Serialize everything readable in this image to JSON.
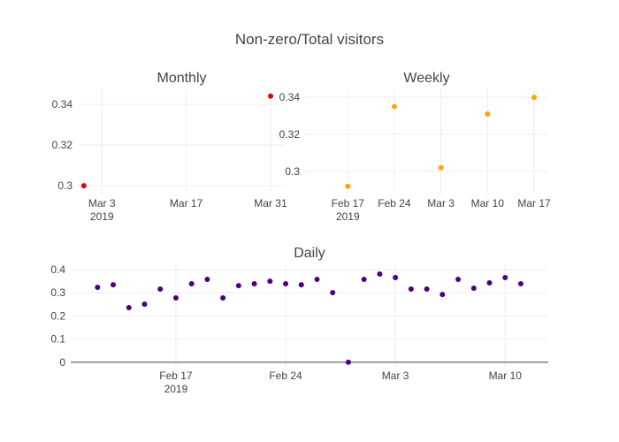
{
  "title": "Non-zero/Total visitors",
  "chart_data": [
    {
      "type": "scatter",
      "title": "Monthly",
      "color": "#e8000b",
      "x": [
        "2019-02-28",
        "2019-03-31"
      ],
      "values": [
        0.3,
        0.344
      ],
      "xlim": [
        "2019-02-27",
        "2019-04-02T12:00"
      ],
      "xticks": [
        {
          "value": "2019-03-03",
          "label": "Mar 3\n2019"
        },
        {
          "value": "2019-03-17",
          "label": "Mar 17"
        },
        {
          "value": "2019-03-31",
          "label": "Mar 31"
        }
      ],
      "ylim": [
        0.2957,
        0.3478
      ],
      "yticks": [
        0.3,
        0.32,
        0.34
      ],
      "grid": true
    },
    {
      "type": "scatter",
      "title": "Weekly",
      "color": "#ffa500",
      "x": [
        "2019-02-17",
        "2019-02-24",
        "2019-03-03",
        "2019-03-10",
        "2019-03-17"
      ],
      "values": [
        0.292,
        0.335,
        0.302,
        0.331,
        0.34
      ],
      "xlim": [
        "2019-02-10T14:00",
        "2019-03-19T03:00"
      ],
      "xticks": [
        {
          "value": "2019-02-17",
          "label": "Feb 17\n2019"
        },
        {
          "value": "2019-02-24",
          "label": "Feb 24"
        },
        {
          "value": "2019-03-03",
          "label": "Mar 3"
        },
        {
          "value": "2019-03-10",
          "label": "Mar 10"
        },
        {
          "value": "2019-03-17",
          "label": "Mar 17"
        }
      ],
      "ylim": [
        0.2876,
        0.3448
      ],
      "yticks": [
        0.3,
        0.32,
        0.34
      ],
      "grid": true
    },
    {
      "type": "scatter",
      "title": "Daily",
      "color": "#4b0082",
      "x": [
        "2019-02-12",
        "2019-02-13",
        "2019-02-14",
        "2019-02-15",
        "2019-02-16",
        "2019-02-17",
        "2019-02-18",
        "2019-02-19",
        "2019-02-20",
        "2019-02-21",
        "2019-02-22",
        "2019-02-23",
        "2019-02-24",
        "2019-02-25",
        "2019-02-26",
        "2019-02-27",
        "2019-02-28",
        "2019-03-01",
        "2019-03-02",
        "2019-03-03",
        "2019-03-04",
        "2019-03-05",
        "2019-03-06",
        "2019-03-07",
        "2019-03-08",
        "2019-03-09",
        "2019-03-10",
        "2019-03-11"
      ],
      "values": [
        0.324,
        0.335,
        0.236,
        0.251,
        0.316,
        0.278,
        0.339,
        0.358,
        0.278,
        0.331,
        0.339,
        0.35,
        0.339,
        0.335,
        0.358,
        0.301,
        0,
        0.358,
        0.381,
        0.366,
        0.316,
        0.316,
        0.293,
        0.358,
        0.32,
        0.343,
        0.366,
        0.339
      ],
      "xlim": [
        "2019-02-10T07:00",
        "2019-03-12T18:00"
      ],
      "xticks": [
        {
          "value": "2019-02-17",
          "label": "Feb 17\n2019"
        },
        {
          "value": "2019-02-24",
          "label": "Feb 24"
        },
        {
          "value": "2019-03-03",
          "label": "Mar 3"
        },
        {
          "value": "2019-03-10",
          "label": "Mar 10"
        }
      ],
      "ylim": [
        -0.02,
        0.427
      ],
      "yticks": [
        0,
        0.1,
        0.2,
        0.3,
        0.4
      ],
      "grid": true
    }
  ]
}
